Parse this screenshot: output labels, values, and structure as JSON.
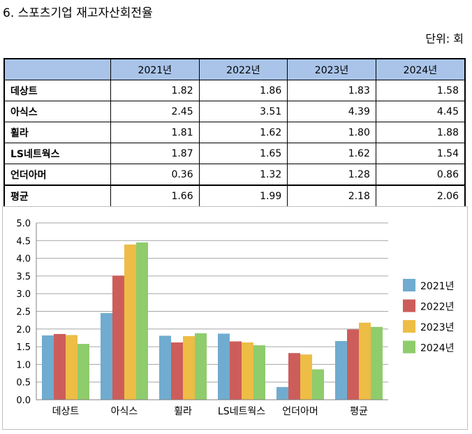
{
  "title": "6. 스포츠기업 재고자산회전율",
  "unit": "단위: 회",
  "table": {
    "headers": [
      "2021년",
      "2022년",
      "2023년",
      "2024년"
    ],
    "rows": [
      {
        "name": "데상트",
        "values": [
          "1.82",
          "1.86",
          "1.83",
          "1.58"
        ]
      },
      {
        "name": "아식스",
        "values": [
          "2.45",
          "3.51",
          "4.39",
          "4.45"
        ]
      },
      {
        "name": "휠라",
        "values": [
          "1.81",
          "1.62",
          "1.80",
          "1.88"
        ]
      },
      {
        "name": "LS네트웍스",
        "values": [
          "1.87",
          "1.65",
          "1.62",
          "1.54"
        ]
      },
      {
        "name": "언더아머",
        "values": [
          "0.36",
          "1.32",
          "1.28",
          "0.86"
        ]
      },
      {
        "name": "평균",
        "values": [
          "1.66",
          "1.99",
          "2.18",
          "2.06"
        ]
      }
    ]
  },
  "chart_data": {
    "type": "bar",
    "categories": [
      "데상트",
      "아식스",
      "휠라",
      "LS네트웍스",
      "언더아머",
      "평균"
    ],
    "series": [
      {
        "name": "2021년",
        "color": "#70acd0",
        "values": [
          1.82,
          2.45,
          1.81,
          1.87,
          0.36,
          1.66
        ]
      },
      {
        "name": "2022년",
        "color": "#cd5d5b",
        "values": [
          1.86,
          3.51,
          1.62,
          1.65,
          1.32,
          1.99
        ]
      },
      {
        "name": "2023년",
        "color": "#edbd45",
        "values": [
          1.83,
          4.39,
          1.8,
          1.62,
          1.28,
          2.18
        ]
      },
      {
        "name": "2024년",
        "color": "#8fcc6c",
        "values": [
          1.58,
          4.45,
          1.88,
          1.54,
          0.86,
          2.06
        ]
      }
    ],
    "ylim": [
      0,
      5.0
    ],
    "yticks": [
      "0.0",
      "0.5",
      "1.0",
      "1.5",
      "2.0",
      "2.5",
      "3.0",
      "3.5",
      "4.0",
      "4.5",
      "5.0"
    ],
    "grid": true,
    "legend": "right"
  }
}
